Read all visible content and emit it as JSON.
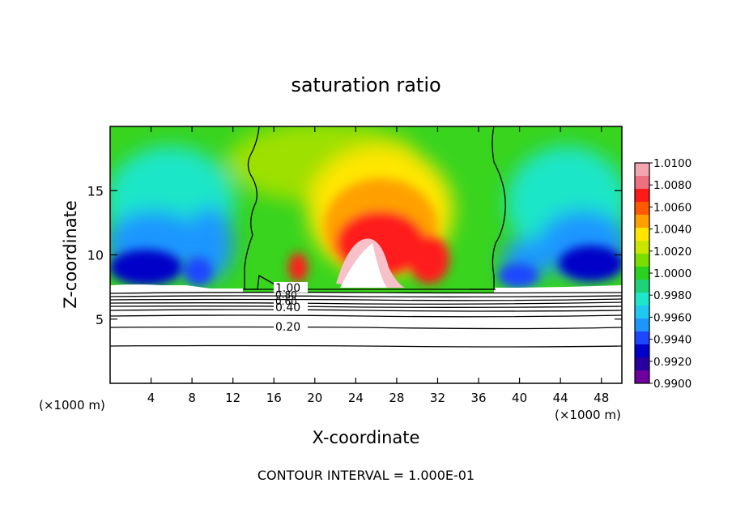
{
  "chart_data": {
    "type": "heatmap",
    "title": "saturation ratio",
    "xlabel": "X-coordinate",
    "ylabel": "Z-coordinate",
    "x_unit_left": "(×1000 m)",
    "x_unit_right": "(×1000 m)",
    "xlim": [
      0,
      50
    ],
    "ylim": [
      0,
      20
    ],
    "x_ticks": [
      "4",
      "8",
      "12",
      "16",
      "20",
      "24",
      "28",
      "32",
      "36",
      "40",
      "44",
      "48"
    ],
    "x_tick_values": [
      4,
      8,
      12,
      16,
      20,
      24,
      28,
      32,
      36,
      40,
      44,
      48
    ],
    "y_ticks": [
      "5",
      "10",
      "15"
    ],
    "y_tick_values": [
      5,
      10,
      15
    ],
    "footer": "CONTOUR INTERVAL = 1.000E-01",
    "colorbar": {
      "labels": [
        "1.0100",
        "1.0080",
        "1.0060",
        "1.0040",
        "1.0020",
        "1.0000",
        "0.9980",
        "0.9960",
        "0.9940",
        "0.9920",
        "0.9900"
      ],
      "range": [
        0.99,
        1.01
      ],
      "colors": [
        "#f4a6b0",
        "#ee7080",
        "#ff1a1a",
        "#ff5a00",
        "#ffa000",
        "#ffe600",
        "#c8e600",
        "#7ade00",
        "#28d21e",
        "#1ed27a",
        "#1ee6c8",
        "#1ec8f0",
        "#1e96ff",
        "#1e46ff",
        "#0000c8",
        "#2800a0",
        "#6e00a0"
      ]
    },
    "contour_labels": [
      {
        "text": "1.00",
        "value": 1.0
      },
      {
        "text": "0.80",
        "value": 0.8
      },
      {
        "text": "0.60",
        "value": 0.6
      },
      {
        "text": "0.40",
        "value": 0.4
      },
      {
        "text": "0.20",
        "value": 0.2
      }
    ],
    "contour_lines_z": [
      7.1,
      6.8,
      6.5,
      6.2,
      5.9,
      5.6,
      5.3,
      4.4,
      2.9
    ],
    "cloud_boundary_x": [
      13.0,
      37.4
    ],
    "cloud_base_z": 7.3
  }
}
